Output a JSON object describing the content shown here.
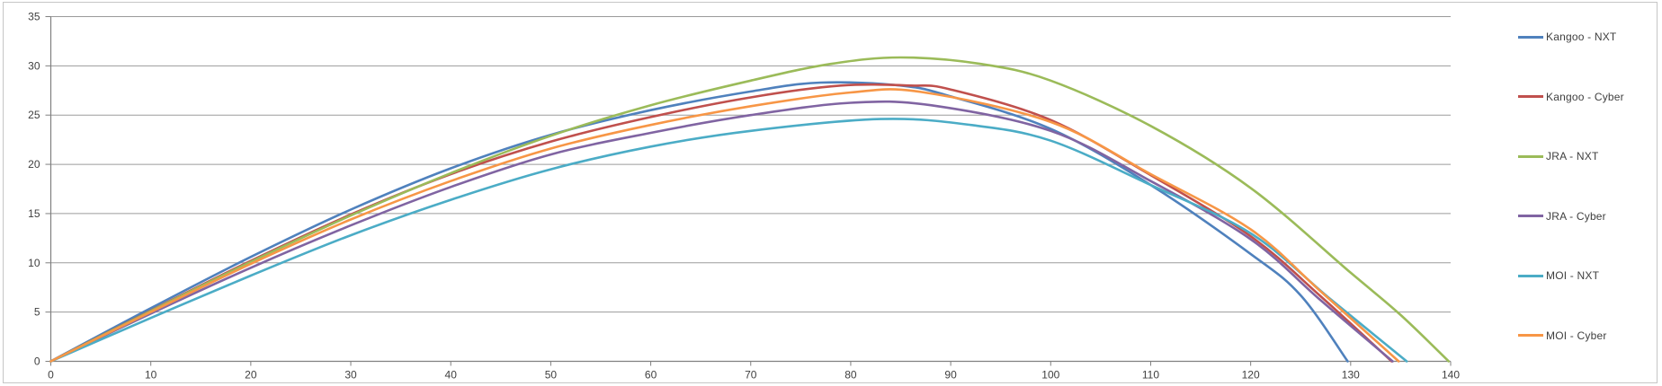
{
  "chart_data": {
    "type": "line",
    "title": "",
    "xlabel": "",
    "ylabel": "",
    "x_axis": {
      "min": 0,
      "max": 140,
      "tick_step": 10,
      "tick_labels": [
        "0",
        "10",
        "20",
        "30",
        "40",
        "50",
        "60",
        "70",
        "80",
        "90",
        "100",
        "110",
        "120",
        "130",
        "140"
      ]
    },
    "y_axis": {
      "min": 0,
      "max": 35,
      "tick_step": 5,
      "tick_labels": [
        "0",
        "5",
        "10",
        "15",
        "20",
        "25",
        "30",
        "35"
      ]
    },
    "gridlines": "horizontal",
    "legend_position": "right",
    "series": [
      {
        "name": "Kangoo - NXT",
        "color": "#4F81BD",
        "points": [
          [
            0,
            0
          ],
          [
            10,
            5.4
          ],
          [
            20,
            10.6
          ],
          [
            30,
            15.4
          ],
          [
            40,
            19.6
          ],
          [
            50,
            23.0
          ],
          [
            60,
            25.5
          ],
          [
            70,
            27.4
          ],
          [
            77,
            28.3
          ],
          [
            85,
            28.0
          ],
          [
            90,
            26.9
          ],
          [
            100,
            23.6
          ],
          [
            110,
            17.9
          ],
          [
            120,
            10.9
          ],
          [
            125,
            6.7
          ],
          [
            129.7,
            0
          ]
        ]
      },
      {
        "name": "Kangoo - Cyber",
        "color": "#C0504D",
        "points": [
          [
            0,
            0
          ],
          [
            10,
            5.15
          ],
          [
            20,
            10.2
          ],
          [
            30,
            14.9
          ],
          [
            40,
            19.0
          ],
          [
            50,
            22.3
          ],
          [
            60,
            24.8
          ],
          [
            70,
            26.8
          ],
          [
            79,
            28.0
          ],
          [
            86,
            28.0
          ],
          [
            90,
            27.6
          ],
          [
            100,
            24.5
          ],
          [
            110,
            18.9
          ],
          [
            120,
            12.7
          ],
          [
            127,
            6.6
          ],
          [
            134.1,
            0
          ]
        ]
      },
      {
        "name": "JRA - NXT",
        "color": "#9BBB59",
        "points": [
          [
            0,
            0
          ],
          [
            10,
            5.1
          ],
          [
            20,
            10.1
          ],
          [
            30,
            14.8
          ],
          [
            40,
            19.1
          ],
          [
            50,
            22.9
          ],
          [
            60,
            26.0
          ],
          [
            70,
            28.5
          ],
          [
            78,
            30.2
          ],
          [
            85,
            30.85
          ],
          [
            93,
            30.2
          ],
          [
            100,
            28.5
          ],
          [
            110,
            23.9
          ],
          [
            120,
            17.6
          ],
          [
            130,
            9.0
          ],
          [
            135,
            4.7
          ],
          [
            139.8,
            0
          ]
        ]
      },
      {
        "name": "JRA - Cyber",
        "color": "#8064A2",
        "points": [
          [
            0,
            0
          ],
          [
            10,
            4.85
          ],
          [
            20,
            9.5
          ],
          [
            30,
            13.8
          ],
          [
            40,
            17.7
          ],
          [
            50,
            21.0
          ],
          [
            60,
            23.2
          ],
          [
            70,
            25.0
          ],
          [
            80,
            26.25
          ],
          [
            88,
            26.0
          ],
          [
            100,
            23.4
          ],
          [
            110,
            18.3
          ],
          [
            120,
            12.4
          ],
          [
            127,
            6.2
          ],
          [
            134.2,
            0
          ]
        ]
      },
      {
        "name": "MOI - NXT",
        "color": "#4BACC6",
        "points": [
          [
            0,
            0
          ],
          [
            10,
            4.4
          ],
          [
            20,
            8.7
          ],
          [
            30,
            12.8
          ],
          [
            40,
            16.4
          ],
          [
            50,
            19.5
          ],
          [
            60,
            21.8
          ],
          [
            70,
            23.4
          ],
          [
            83,
            24.6
          ],
          [
            92,
            24.0
          ],
          [
            100,
            22.4
          ],
          [
            110,
            17.9
          ],
          [
            120,
            13.0
          ],
          [
            128,
            6.3
          ],
          [
            135.6,
            0
          ]
        ]
      },
      {
        "name": "MOI - Cyber",
        "color": "#F79646",
        "points": [
          [
            0,
            0
          ],
          [
            10,
            5.0
          ],
          [
            20,
            9.9
          ],
          [
            30,
            14.4
          ],
          [
            40,
            18.3
          ],
          [
            50,
            21.6
          ],
          [
            60,
            24.0
          ],
          [
            70,
            25.9
          ],
          [
            80,
            27.3
          ],
          [
            87,
            27.35
          ],
          [
            100,
            24.3
          ],
          [
            110,
            19.0
          ],
          [
            120,
            13.4
          ],
          [
            127,
            7.1
          ],
          [
            134.8,
            0
          ]
        ]
      }
    ],
    "colors": {
      "background": "#FFFFFF",
      "frame_border": "#C6C6C6",
      "gridline": "#9B9B9B",
      "axis": "#808080",
      "tick": "#808080",
      "label": "#3F3F3F"
    }
  }
}
